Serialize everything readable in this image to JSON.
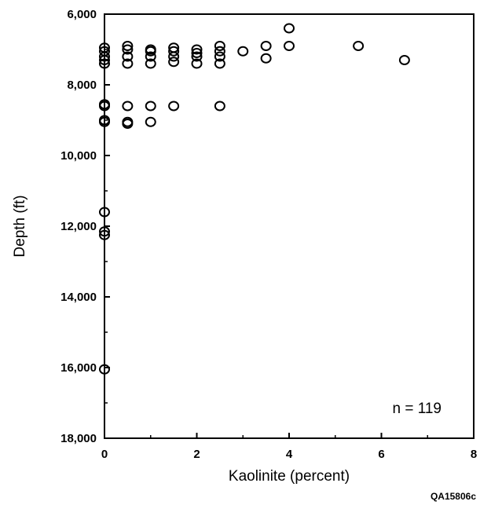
{
  "chart_data": {
    "type": "scatter",
    "title": "",
    "xlabel": "Kaolinite (percent)",
    "ylabel": "Depth (ft)",
    "xlim": [
      0,
      8
    ],
    "ylim": [
      6000,
      18000
    ],
    "y_inverted": true,
    "grid": false,
    "x_ticks": [
      0,
      2,
      4,
      6,
      8
    ],
    "x_tick_labels": [
      "0",
      "2",
      "4",
      "6",
      "8"
    ],
    "y_ticks": [
      6000,
      8000,
      10000,
      12000,
      14000,
      16000,
      18000
    ],
    "y_tick_labels": [
      "6,000",
      "8,000",
      "10,000",
      "12,000",
      "14,000",
      "16,000",
      "18,000"
    ],
    "annotation": "n = 119",
    "figure_id": "QA15806c",
    "marker": "open-circle",
    "points": [
      {
        "x": 0,
        "y": 6950
      },
      {
        "x": 0,
        "y": 7050
      },
      {
        "x": 0,
        "y": 7200
      },
      {
        "x": 0,
        "y": 7300
      },
      {
        "x": 0,
        "y": 7400
      },
      {
        "x": 0,
        "y": 8550
      },
      {
        "x": 0,
        "y": 8600
      },
      {
        "x": 0,
        "y": 9000
      },
      {
        "x": 0,
        "y": 9050
      },
      {
        "x": 0,
        "y": 11600
      },
      {
        "x": 0,
        "y": 12150
      },
      {
        "x": 0,
        "y": 12250
      },
      {
        "x": 0,
        "y": 16050
      },
      {
        "x": 0.5,
        "y": 6900
      },
      {
        "x": 0.5,
        "y": 7000
      },
      {
        "x": 0.5,
        "y": 7200
      },
      {
        "x": 0.5,
        "y": 7400
      },
      {
        "x": 0.5,
        "y": 8600
      },
      {
        "x": 0.5,
        "y": 9050
      },
      {
        "x": 0.5,
        "y": 9100
      },
      {
        "x": 1,
        "y": 7000
      },
      {
        "x": 1,
        "y": 7050
      },
      {
        "x": 1,
        "y": 7200
      },
      {
        "x": 1,
        "y": 7400
      },
      {
        "x": 1,
        "y": 8600
      },
      {
        "x": 1,
        "y": 9050
      },
      {
        "x": 1.5,
        "y": 6950
      },
      {
        "x": 1.5,
        "y": 7050
      },
      {
        "x": 1.5,
        "y": 7200
      },
      {
        "x": 1.5,
        "y": 7350
      },
      {
        "x": 1.5,
        "y": 8600
      },
      {
        "x": 2,
        "y": 7000
      },
      {
        "x": 2,
        "y": 7100
      },
      {
        "x": 2,
        "y": 7200
      },
      {
        "x": 2,
        "y": 7400
      },
      {
        "x": 2.5,
        "y": 6900
      },
      {
        "x": 2.5,
        "y": 7050
      },
      {
        "x": 2.5,
        "y": 7200
      },
      {
        "x": 2.5,
        "y": 7400
      },
      {
        "x": 2.5,
        "y": 8600
      },
      {
        "x": 3,
        "y": 7050
      },
      {
        "x": 3.5,
        "y": 6900
      },
      {
        "x": 3.5,
        "y": 7250
      },
      {
        "x": 4,
        "y": 6400
      },
      {
        "x": 4,
        "y": 6900
      },
      {
        "x": 5.5,
        "y": 6900
      },
      {
        "x": 6.5,
        "y": 7300
      }
    ]
  }
}
